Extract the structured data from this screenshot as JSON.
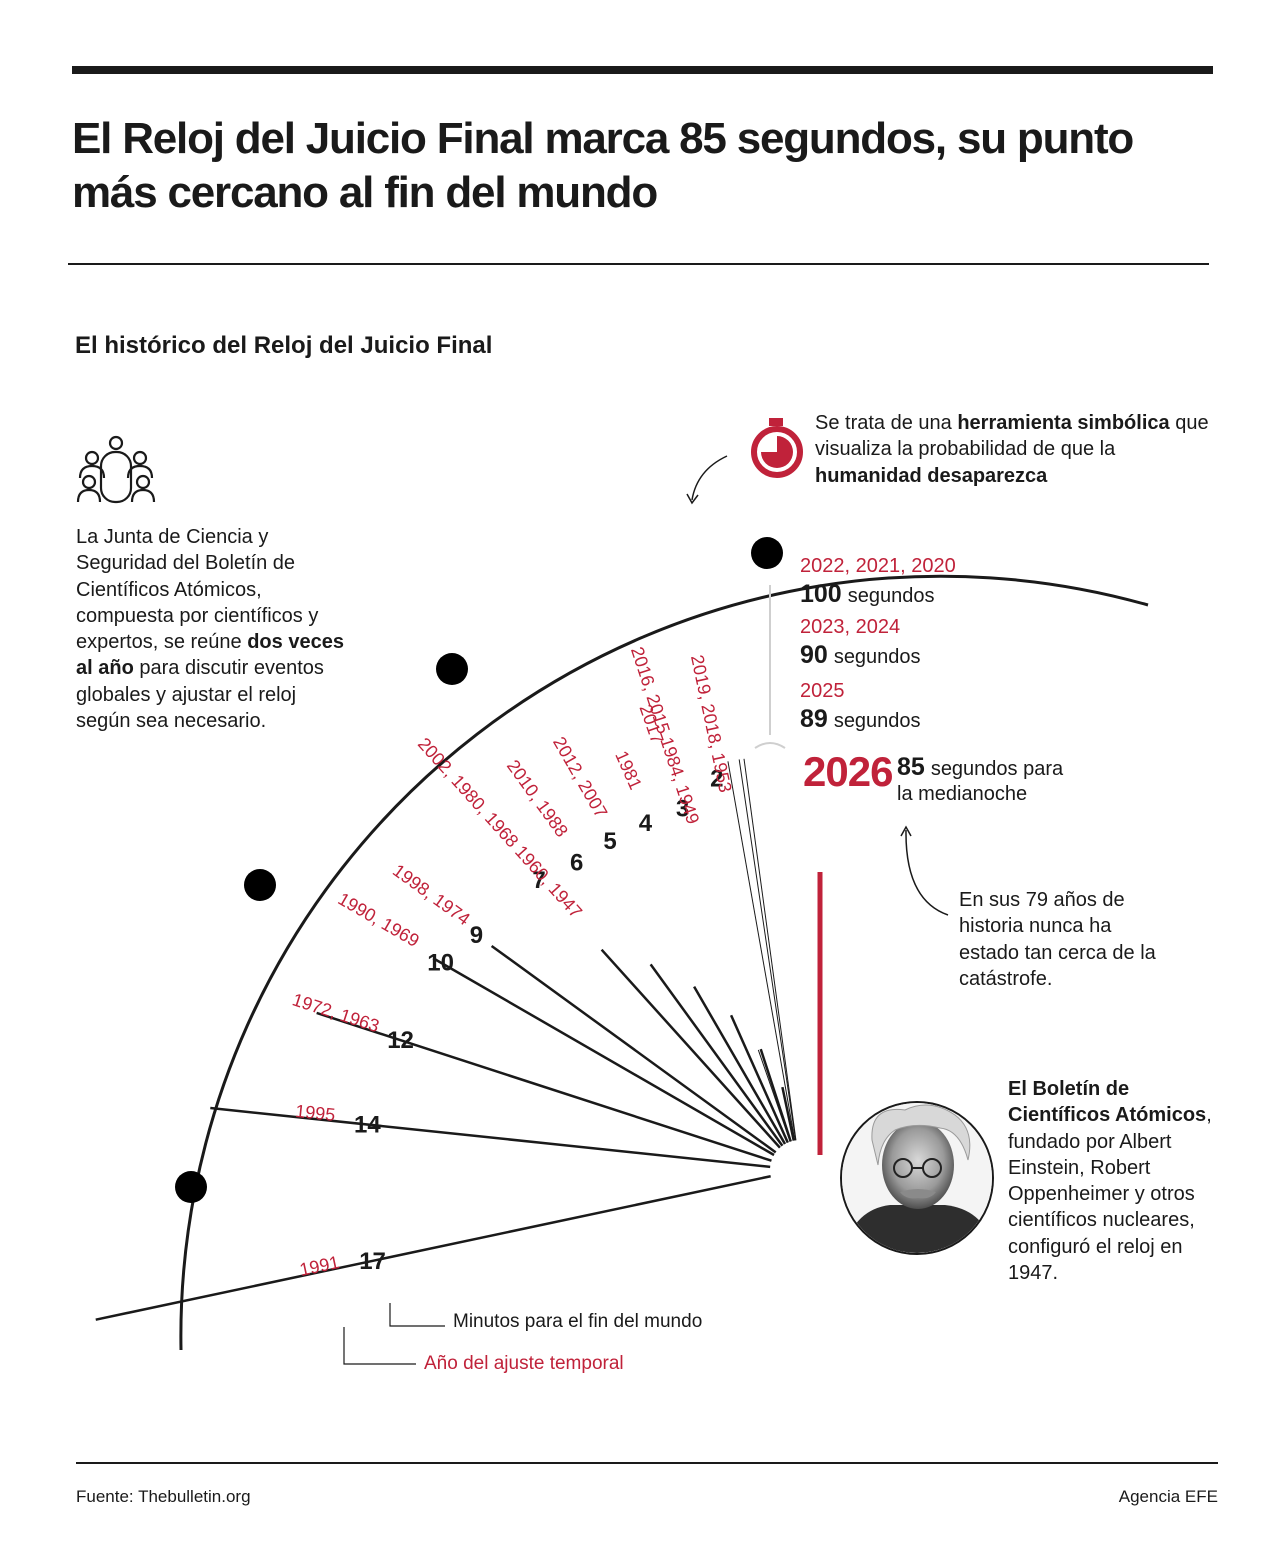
{
  "title": "El Reloj del Juicio Final marca 85 segundos, su punto más cercano al fin del mundo",
  "subtitle": "El histórico del Reloj del Juicio Final",
  "colors": {
    "accent": "#c0223a",
    "ink": "#1a1a1a"
  },
  "intro": {
    "icon": "meeting-people-icon",
    "parts": [
      {
        "t": "La Junta de Ciencia y Seguridad del Boletín de Científicos Atómicos, compuesta por científicos y expertos, se reúne ",
        "b": false
      },
      {
        "t": "dos veces al año",
        "b": true
      },
      {
        "t": " para discutir eventos globales y ajustar el reloj según sea necesario.",
        "b": false
      }
    ]
  },
  "tool_note": {
    "icon": "stopwatch-icon",
    "parts": [
      {
        "t": "Se trata de una ",
        "b": false
      },
      {
        "t": "herramienta simbólica",
        "b": true
      },
      {
        "t": " que visualiza la probabilidad de que la ",
        "b": false
      },
      {
        "t": "humanidad desaparezca",
        "b": true
      }
    ]
  },
  "history_note": "En sus 79 años de historia nunca ha estado tan cerca de la catástrofe.",
  "bulletin_note": {
    "icon": "albert-einstein-portrait",
    "parts": [
      {
        "t": "El Boletín de Científicos Atómicos",
        "b": true
      },
      {
        "t": ", fundado por Albert Einstein, Robert Oppenheimer y otros científicos nucleares, configuró el reloj en 1947.",
        "b": false
      }
    ]
  },
  "legend": {
    "minutes": "Minutos para el fin del mundo",
    "year": "Año del ajuste temporal"
  },
  "chart_data": {
    "type": "radial",
    "unit": "minutes",
    "minutes": [
      {
        "value": 17,
        "label": "17",
        "years": "1991"
      },
      {
        "value": 14,
        "label": "14",
        "years": "1995"
      },
      {
        "value": 12,
        "label": "12",
        "years": "1972, 1963"
      },
      {
        "value": 10,
        "label": "10",
        "years": "1990, 1969"
      },
      {
        "value": 9,
        "label": "9",
        "years": "1998, 1974"
      },
      {
        "value": 7,
        "label": "7",
        "years": "2002, 1980, 1968 1960, 1947"
      },
      {
        "value": 6,
        "label": "6",
        "years": "2010, 1988"
      },
      {
        "value": 5,
        "label": "5",
        "years": "2012, 2007"
      },
      {
        "value": 4,
        "label": "4",
        "years": "1981"
      },
      {
        "value": 3,
        "label": "3",
        "years": "2016, 2015 1984, 1949"
      },
      {
        "value": 3,
        "label": "",
        "years": "2017"
      },
      {
        "value": 2,
        "label": "2",
        "years": "2019, 2018, 1953"
      }
    ],
    "seconds": [
      {
        "value": 100,
        "number": "100",
        "unit": "segundos",
        "years": "2022, 2021, 2020"
      },
      {
        "value": 90,
        "number": "90",
        "unit": "segundos",
        "years": "2023, 2024"
      },
      {
        "value": 89,
        "number": "89",
        "unit": "segundos",
        "years": "2025"
      }
    ],
    "current": {
      "year": "2026",
      "value": 85,
      "number": "85",
      "text_1": "segundos para",
      "text_2": "la medianoche"
    }
  },
  "source": "Fuente: Thebulletin.org",
  "credit": "Agencia EFE"
}
